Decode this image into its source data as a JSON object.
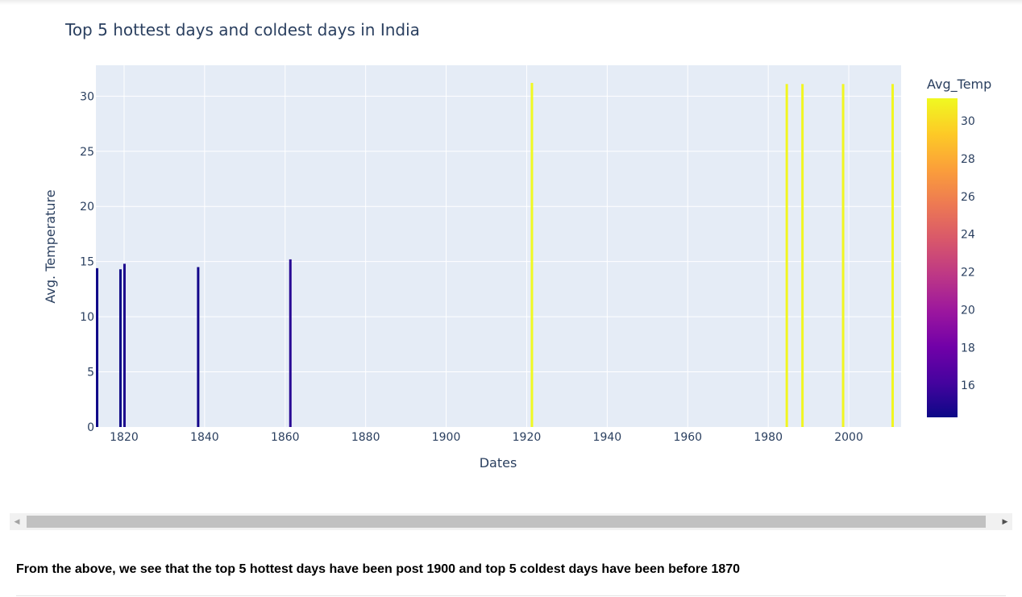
{
  "summary_text": "From the above, we see that the top 5 hottest days have been post 1900 and top 5 coldest days have been before 1870",
  "scrollbar": {
    "left_arrow": "◀",
    "right_arrow": "▶"
  },
  "chart_data": {
    "type": "bar",
    "title": "Top 5 hottest days and coldest days in India",
    "xlabel": "Dates",
    "ylabel": "Avg. Temperature",
    "xlim": [
      1813,
      2013
    ],
    "ylim": [
      0,
      32.8
    ],
    "x_ticks": [
      1820,
      1840,
      1860,
      1880,
      1900,
      1920,
      1940,
      1960,
      1980,
      2000
    ],
    "y_ticks": [
      0,
      5,
      10,
      15,
      20,
      25,
      30
    ],
    "grid": true,
    "plot_background": "#e5ecf6",
    "x": [
      1813.3,
      1819.1,
      1820.1,
      1838.4,
      1861.3,
      1921.3,
      1984.6,
      1988.5,
      1998.6,
      2010.9
    ],
    "values": [
      14.4,
      14.3,
      14.8,
      14.5,
      15.2,
      31.2,
      31.1,
      31.1,
      31.1,
      31.1
    ],
    "colorbar": {
      "title": "Avg_Temp",
      "range": [
        14.3,
        31.2
      ],
      "ticks": [
        16,
        18,
        20,
        22,
        24,
        26,
        28,
        30
      ],
      "colorscale": [
        "#0d0887",
        "#46039f",
        "#7201a8",
        "#9c179e",
        "#bd3786",
        "#d8576b",
        "#ed7953",
        "#fb9f3a",
        "#fdca26",
        "#f0f921"
      ]
    }
  }
}
